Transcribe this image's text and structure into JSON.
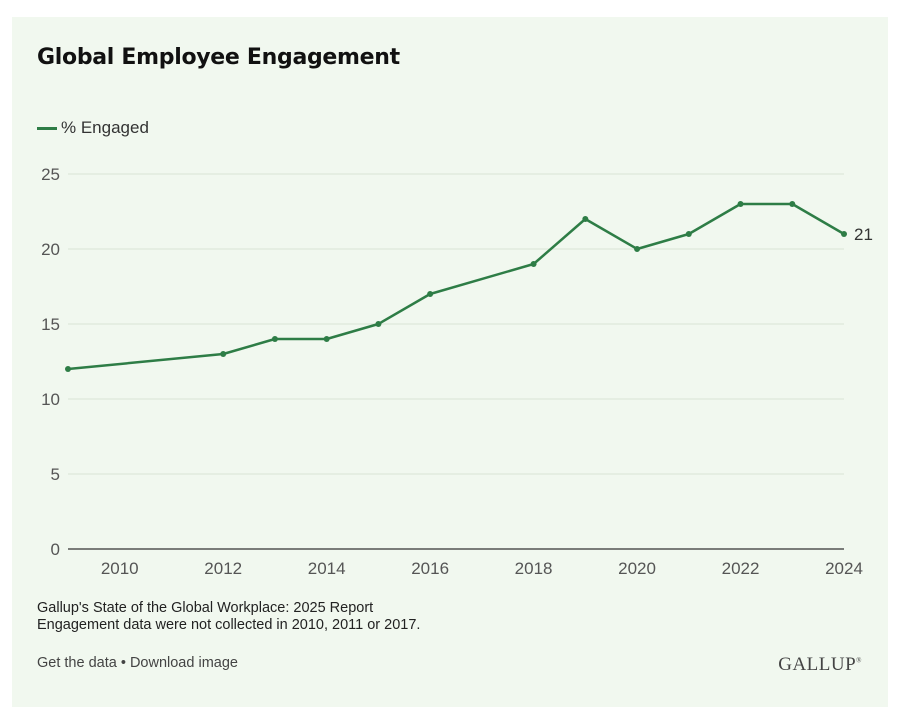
{
  "chart_data": {
    "type": "line",
    "title": "Global Employee Engagement",
    "xlabel": "",
    "ylabel": "",
    "legend_position": "top-left",
    "grid": true,
    "xlim": [
      2009,
      2024
    ],
    "ylim": [
      0,
      25
    ],
    "xticks": [
      "2010",
      "2012",
      "2014",
      "2016",
      "2018",
      "2020",
      "2022",
      "2024"
    ],
    "yticks": [
      "0",
      "5",
      "10",
      "15",
      "20",
      "25"
    ],
    "series": [
      {
        "name": "% Engaged",
        "color": "#2e7d46",
        "x": [
          2009,
          2012,
          2013,
          2014,
          2015,
          2016,
          2018,
          2019,
          2020,
          2021,
          2022,
          2023,
          2024
        ],
        "y": [
          12,
          13,
          14,
          14,
          15,
          17,
          19,
          22,
          20,
          21,
          23,
          23,
          21
        ]
      }
    ],
    "end_label": "21"
  },
  "source": {
    "line1": "Gallup's State of the Global Workplace: 2025 Report",
    "line2": "Engagement data were not collected in 2010, 2011 or 2017."
  },
  "footer": {
    "get_data": "Get the data",
    "separator": " • ",
    "download": "Download image"
  },
  "brand": {
    "name": "GALLUP",
    "mark": "®"
  }
}
